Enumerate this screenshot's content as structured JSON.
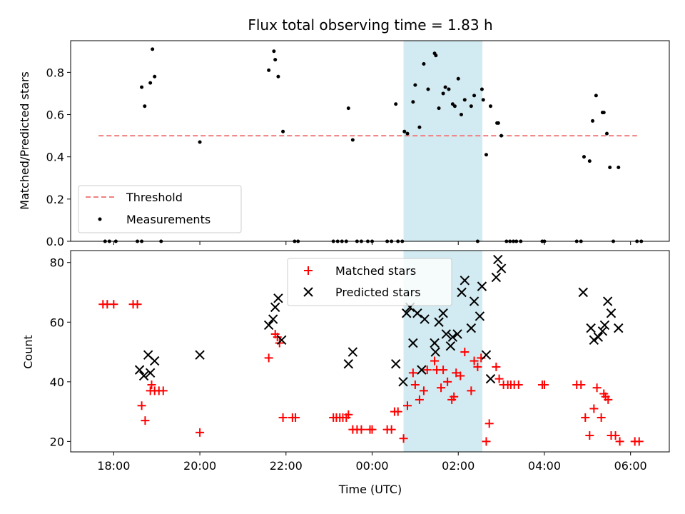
{
  "title": "Flux total observing time = 1.83 h",
  "top_panel": {
    "ylabel": "Matched/Predicted stars",
    "legend": {
      "threshold": "Threshold",
      "measurements": "Measurements"
    }
  },
  "bottom_panel": {
    "ylabel": "Count",
    "xlabel": "Time (UTC)",
    "legend": {
      "matched": "Matched stars",
      "predicted": "Predicted stars"
    }
  },
  "colors": {
    "threshold": "#f08080",
    "measurements": "#000000",
    "matched": "#ff0000",
    "predicted": "#000000",
    "span": "#add8e6"
  },
  "chart_data": [
    {
      "type": "scatter",
      "panel": "top",
      "title": "Flux total observing time = 1.83 h",
      "xlabel": "",
      "ylabel": "Matched/Predicted stars",
      "xlim": [
        -7.0,
        6.9
      ],
      "ylim": [
        0.0,
        0.95
      ],
      "xticks": [
        -6,
        -4,
        -2,
        0,
        2,
        4,
        6
      ],
      "xtick_labels": [
        "18:00",
        "20:00",
        "22:00",
        "00:00",
        "02:00",
        "04:00",
        "06:00"
      ],
      "yticks": [
        0.0,
        0.2,
        0.4,
        0.6,
        0.8
      ],
      "ytick_labels": [
        "0.0",
        "0.2",
        "0.4",
        "0.6",
        "0.8"
      ],
      "legend_position": "lower-left",
      "shaded_span": [
        0.73,
        2.56
      ],
      "threshold": {
        "name": "Threshold",
        "y": 0.5,
        "x_range": [
          -6.35,
          6.15
        ],
        "style": "dashed"
      },
      "series": [
        {
          "name": "Measurements",
          "points": [
            [
              -6.2,
              0.0
            ],
            [
              -6.1,
              0.0
            ],
            [
              -5.95,
              0.0
            ],
            [
              -5.45,
              0.0
            ],
            [
              -5.35,
              0.0
            ],
            [
              -5.35,
              0.73
            ],
            [
              -5.28,
              0.64
            ],
            [
              -5.15,
              0.75
            ],
            [
              -5.1,
              0.91
            ],
            [
              -5.05,
              0.78
            ],
            [
              -4.9,
              0.0
            ],
            [
              -4.0,
              0.47
            ],
            [
              -2.4,
              0.81
            ],
            [
              -2.28,
              0.9
            ],
            [
              -2.25,
              0.86
            ],
            [
              -2.18,
              0.78
            ],
            [
              -2.07,
              0.52
            ],
            [
              -1.8,
              0.0
            ],
            [
              -1.72,
              0.0
            ],
            [
              -0.9,
              0.0
            ],
            [
              -0.8,
              0.0
            ],
            [
              -0.7,
              0.0
            ],
            [
              -0.6,
              0.0
            ],
            [
              -0.55,
              0.63
            ],
            [
              -0.45,
              0.48
            ],
            [
              -0.35,
              0.0
            ],
            [
              -0.25,
              0.0
            ],
            [
              -0.1,
              0.0
            ],
            [
              0.0,
              0.0
            ],
            [
              0.35,
              0.0
            ],
            [
              0.45,
              0.0
            ],
            [
              0.55,
              0.65
            ],
            [
              0.6,
              0.0
            ],
            [
              0.7,
              0.0
            ],
            [
              0.75,
              0.52
            ],
            [
              0.82,
              0.51
            ],
            [
              0.95,
              0.66
            ],
            [
              1.0,
              0.74
            ],
            [
              1.1,
              0.54
            ],
            [
              1.2,
              0.84
            ],
            [
              1.3,
              0.72
            ],
            [
              1.45,
              0.89
            ],
            [
              1.48,
              0.88
            ],
            [
              1.55,
              0.63
            ],
            [
              1.65,
              0.7
            ],
            [
              1.7,
              0.73
            ],
            [
              1.78,
              0.72
            ],
            [
              1.87,
              0.65
            ],
            [
              1.92,
              0.64
            ],
            [
              2.0,
              0.77
            ],
            [
              2.07,
              0.6
            ],
            [
              2.15,
              0.67
            ],
            [
              2.3,
              0.64
            ],
            [
              2.37,
              0.69
            ],
            [
              2.45,
              0.0
            ],
            [
              2.55,
              0.72
            ],
            [
              2.58,
              0.67
            ],
            [
              2.65,
              0.41
            ],
            [
              2.75,
              0.64
            ],
            [
              2.9,
              0.56
            ],
            [
              2.93,
              0.56
            ],
            [
              3.0,
              0.5
            ],
            [
              3.12,
              0.0
            ],
            [
              3.2,
              0.0
            ],
            [
              3.28,
              0.0
            ],
            [
              3.35,
              0.0
            ],
            [
              3.45,
              0.0
            ],
            [
              3.95,
              0.0
            ],
            [
              4.0,
              0.0
            ],
            [
              4.75,
              0.0
            ],
            [
              4.85,
              0.0
            ],
            [
              4.92,
              0.4
            ],
            [
              5.05,
              0.38
            ],
            [
              5.12,
              0.57
            ],
            [
              5.2,
              0.69
            ],
            [
              5.35,
              0.61
            ],
            [
              5.38,
              0.61
            ],
            [
              5.45,
              0.51
            ],
            [
              5.52,
              0.35
            ],
            [
              5.72,
              0.35
            ],
            [
              5.6,
              0.0
            ],
            [
              6.15,
              0.0
            ],
            [
              6.25,
              0.0
            ]
          ]
        }
      ]
    },
    {
      "type": "scatter",
      "panel": "bottom",
      "xlabel": "Time (UTC)",
      "ylabel": "Count",
      "xlim": [
        -7.0,
        6.9
      ],
      "ylim": [
        16.5,
        84
      ],
      "xticks": [
        -6,
        -4,
        -2,
        0,
        2,
        4,
        6
      ],
      "xtick_labels": [
        "18:00",
        "20:00",
        "22:00",
        "00:00",
        "02:00",
        "04:00",
        "06:00"
      ],
      "yticks": [
        20,
        40,
        60,
        80
      ],
      "ytick_labels": [
        "20",
        "40",
        "60",
        "80"
      ],
      "legend_position": "upper-center",
      "shaded_span": [
        0.73,
        2.56
      ],
      "series": [
        {
          "name": "Matched stars",
          "marker": "plus",
          "points": [
            [
              -6.25,
              66
            ],
            [
              -6.15,
              66
            ],
            [
              -6.0,
              66
            ],
            [
              -5.55,
              66
            ],
            [
              -5.45,
              66
            ],
            [
              -5.35,
              32
            ],
            [
              -5.27,
              27
            ],
            [
              -5.15,
              37
            ],
            [
              -5.12,
              39
            ],
            [
              -5.05,
              37
            ],
            [
              -4.95,
              37
            ],
            [
              -4.85,
              37
            ],
            [
              -4.0,
              23
            ],
            [
              -2.4,
              48
            ],
            [
              -2.25,
              56
            ],
            [
              -2.2,
              55
            ],
            [
              -2.15,
              53
            ],
            [
              -2.07,
              28
            ],
            [
              -1.85,
              28
            ],
            [
              -1.78,
              28
            ],
            [
              -0.9,
              28
            ],
            [
              -0.83,
              28
            ],
            [
              -0.75,
              28
            ],
            [
              -0.68,
              28
            ],
            [
              -0.6,
              28
            ],
            [
              -0.55,
              29
            ],
            [
              -0.45,
              24
            ],
            [
              -0.35,
              24
            ],
            [
              -0.25,
              24
            ],
            [
              -0.05,
              24
            ],
            [
              0.0,
              24
            ],
            [
              0.35,
              24
            ],
            [
              0.45,
              24
            ],
            [
              0.52,
              30
            ],
            [
              0.6,
              30
            ],
            [
              0.73,
              21
            ],
            [
              0.82,
              32
            ],
            [
              0.95,
              43
            ],
            [
              1.0,
              39
            ],
            [
              1.1,
              34
            ],
            [
              1.2,
              37
            ],
            [
              1.28,
              44
            ],
            [
              1.45,
              47
            ],
            [
              1.5,
              44
            ],
            [
              1.6,
              38
            ],
            [
              1.65,
              44
            ],
            [
              1.75,
              40
            ],
            [
              1.85,
              34
            ],
            [
              1.9,
              35
            ],
            [
              1.95,
              43
            ],
            [
              2.05,
              42
            ],
            [
              2.15,
              50
            ],
            [
              2.3,
              37
            ],
            [
              2.37,
              47
            ],
            [
              2.45,
              45
            ],
            [
              2.53,
              48
            ],
            [
              2.65,
              20
            ],
            [
              2.72,
              26
            ],
            [
              2.88,
              45
            ],
            [
              2.95,
              41
            ],
            [
              3.05,
              39
            ],
            [
              3.15,
              39
            ],
            [
              3.22,
              39
            ],
            [
              3.3,
              39
            ],
            [
              3.4,
              39
            ],
            [
              3.95,
              39
            ],
            [
              4.0,
              39
            ],
            [
              4.75,
              39
            ],
            [
              4.85,
              39
            ],
            [
              4.95,
              28
            ],
            [
              5.05,
              22
            ],
            [
              5.15,
              31
            ],
            [
              5.22,
              38
            ],
            [
              5.32,
              28
            ],
            [
              5.38,
              36
            ],
            [
              5.42,
              35
            ],
            [
              5.48,
              34
            ],
            [
              5.55,
              22
            ],
            [
              5.65,
              22
            ],
            [
              5.75,
              20
            ],
            [
              6.1,
              20
            ],
            [
              6.2,
              20
            ]
          ]
        },
        {
          "name": "Predicted stars",
          "marker": "x",
          "points": [
            [
              -5.4,
              44
            ],
            [
              -5.3,
              42
            ],
            [
              -5.2,
              49
            ],
            [
              -5.15,
              43
            ],
            [
              -5.05,
              47
            ],
            [
              -4.0,
              49
            ],
            [
              -2.4,
              59
            ],
            [
              -2.3,
              61
            ],
            [
              -2.25,
              65
            ],
            [
              -2.18,
              68
            ],
            [
              -2.1,
              54
            ],
            [
              -0.55,
              46
            ],
            [
              -0.45,
              50
            ],
            [
              0.55,
              46
            ],
            [
              0.72,
              40
            ],
            [
              0.8,
              63
            ],
            [
              0.88,
              65
            ],
            [
              0.95,
              53
            ],
            [
              1.05,
              63
            ],
            [
              1.15,
              44
            ],
            [
              1.22,
              61
            ],
            [
              1.45,
              53
            ],
            [
              1.47,
              50
            ],
            [
              1.55,
              60
            ],
            [
              1.65,
              63
            ],
            [
              1.72,
              56
            ],
            [
              1.82,
              52
            ],
            [
              1.87,
              55
            ],
            [
              1.98,
              56
            ],
            [
              2.08,
              70
            ],
            [
              2.15,
              74
            ],
            [
              2.3,
              58
            ],
            [
              2.37,
              67
            ],
            [
              2.5,
              62
            ],
            [
              2.55,
              72
            ],
            [
              2.65,
              49
            ],
            [
              2.75,
              41
            ],
            [
              2.88,
              75
            ],
            [
              2.92,
              81
            ],
            [
              3.0,
              78
            ],
            [
              4.9,
              70
            ],
            [
              5.08,
              58
            ],
            [
              5.15,
              54
            ],
            [
              5.25,
              55
            ],
            [
              5.35,
              57
            ],
            [
              5.4,
              59
            ],
            [
              5.47,
              67
            ],
            [
              5.55,
              63
            ],
            [
              5.72,
              58
            ]
          ]
        }
      ]
    }
  ]
}
